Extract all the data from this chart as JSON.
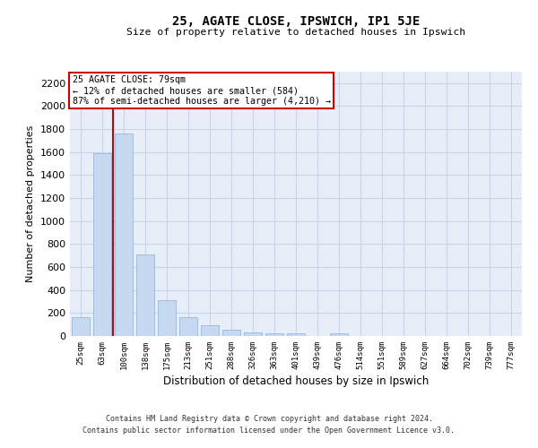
{
  "title": "25, AGATE CLOSE, IPSWICH, IP1 5JE",
  "subtitle": "Size of property relative to detached houses in Ipswich",
  "xlabel": "Distribution of detached houses by size in Ipswich",
  "ylabel": "Number of detached properties",
  "bar_color": "#c6d9f0",
  "bar_edge_color": "#8ab0d4",
  "categories": [
    "25sqm",
    "63sqm",
    "100sqm",
    "138sqm",
    "175sqm",
    "213sqm",
    "251sqm",
    "288sqm",
    "326sqm",
    "363sqm",
    "401sqm",
    "439sqm",
    "476sqm",
    "514sqm",
    "551sqm",
    "589sqm",
    "627sqm",
    "664sqm",
    "702sqm",
    "739sqm",
    "777sqm"
  ],
  "values": [
    160,
    1590,
    1760,
    710,
    315,
    160,
    90,
    55,
    35,
    25,
    20,
    0,
    20,
    0,
    0,
    0,
    0,
    0,
    0,
    0,
    0
  ],
  "ylim": [
    0,
    2300
  ],
  "yticks": [
    0,
    200,
    400,
    600,
    800,
    1000,
    1200,
    1400,
    1600,
    1800,
    2000,
    2200
  ],
  "vline_x": 1.5,
  "annotation_title": "25 AGATE CLOSE: 79sqm",
  "annotation_line1": "← 12% of detached houses are smaller (584)",
  "annotation_line2": "87% of semi-detached houses are larger (4,210) →",
  "annotation_box_color": "#ffffff",
  "annotation_box_edge": "#cc0000",
  "vline_color": "#cc0000",
  "grid_color": "#c8d4e8",
  "bg_color": "#e8eef8",
  "footer1": "Contains HM Land Registry data © Crown copyright and database right 2024.",
  "footer2": "Contains public sector information licensed under the Open Government Licence v3.0."
}
